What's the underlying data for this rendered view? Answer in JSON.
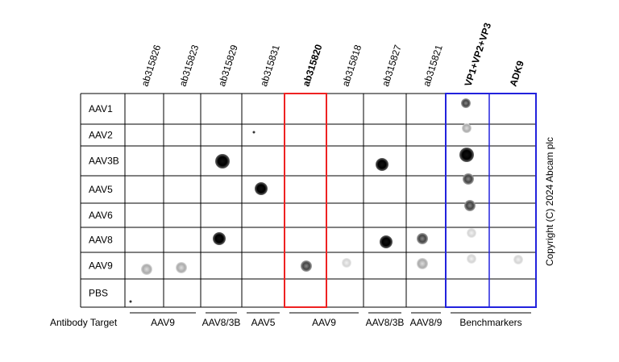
{
  "columns": [
    {
      "label": "ab315826",
      "color": "#000000"
    },
    {
      "label": "ab315823",
      "color": "#000000"
    },
    {
      "label": "ab315829",
      "color": "#000000"
    },
    {
      "label": "ab315831",
      "color": "#000000"
    },
    {
      "label": "ab315820",
      "color": "#ee2222"
    },
    {
      "label": "ab315818",
      "color": "#000000"
    },
    {
      "label": "ab315827",
      "color": "#000000"
    },
    {
      "label": "ab315821",
      "color": "#000000"
    },
    {
      "label": "VP1+VP2+VP3",
      "color": "#2222dd"
    },
    {
      "label": "ADK9",
      "color": "#2222dd"
    }
  ],
  "rows": [
    "AAV1",
    "AAV2",
    "AAV3B",
    "AAV5",
    "AAV6",
    "AAV8",
    "AAV9",
    "PBS"
  ],
  "target_label": "Antibody Target",
  "targets": [
    "AAV9",
    "AAV8/3B",
    "AAV5",
    "AAV9",
    "AAV8/3B",
    "AAV8/9",
    "Benchmarkers"
  ],
  "copyright": "Copyright (C) 2024 Abcam plc"
}
